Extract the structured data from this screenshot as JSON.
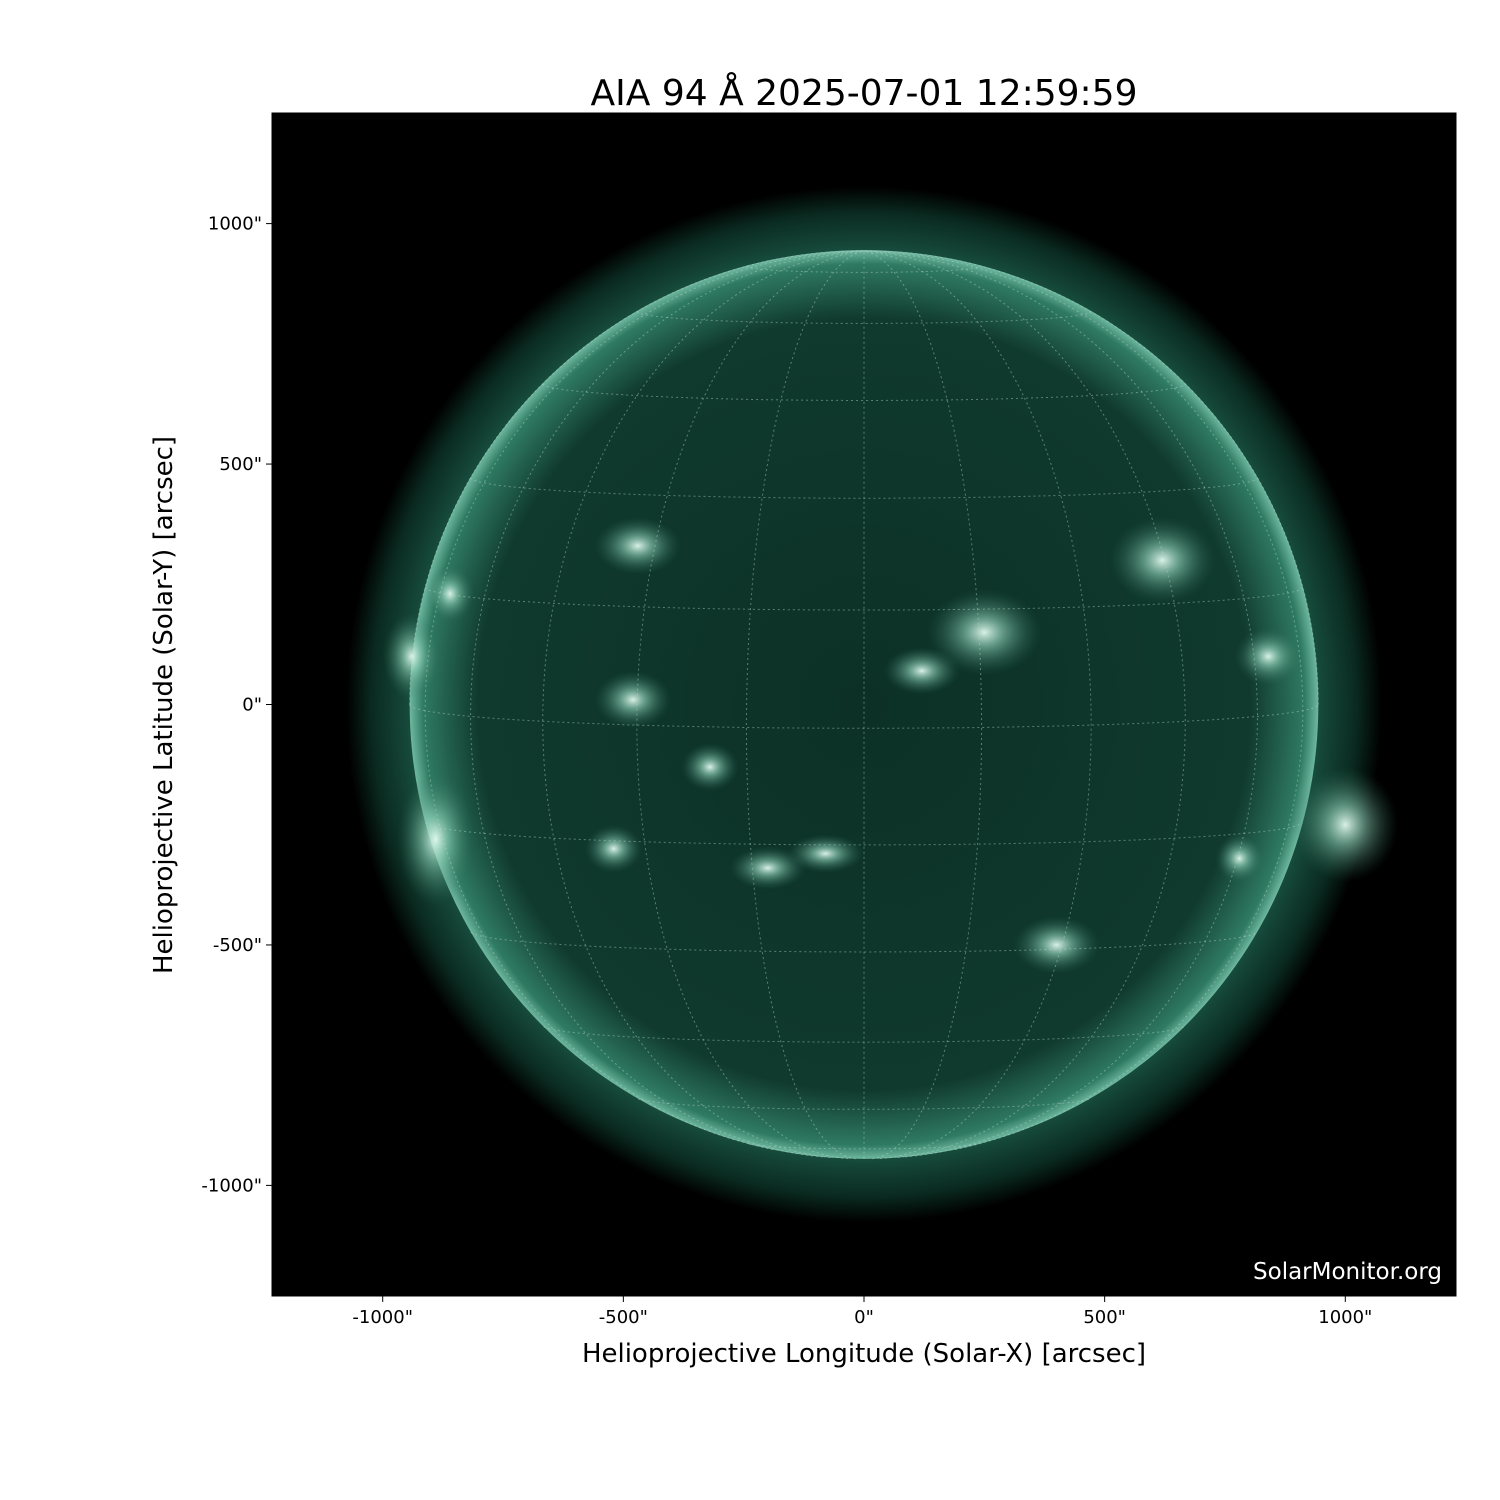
{
  "chart_data": {
    "type": "image",
    "title": "AIA 94 Å 2025-07-01 12:59:59",
    "xlabel": "Helioprojective Longitude (Solar-X) [arcsec]",
    "ylabel": "Helioprojective Latitude (Solar-Y) [arcsec]",
    "xlim": [
      -1230,
      1230
    ],
    "ylim": [
      -1230,
      1230
    ],
    "xticks": [
      -1000,
      -500,
      0,
      500,
      1000
    ],
    "yticks": [
      -1000,
      -500,
      0,
      500,
      1000
    ],
    "xtick_labels": [
      "-1000\"",
      "-500\"",
      "0\"",
      "500\"",
      "1000\""
    ],
    "ytick_labels": [
      "-1000\"",
      "-500\"",
      "0\"",
      "500\"",
      "1000\""
    ],
    "solar_radius_arcsec": 944,
    "grid": "heliographic, 15° spacing, dotted",
    "colormap": {
      "background": "#000000",
      "disk": "#0d3328",
      "bright": "#d8f4ea"
    },
    "watermark": "SolarMonitor.org"
  }
}
